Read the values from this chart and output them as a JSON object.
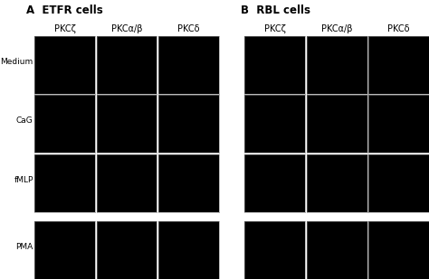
{
  "title_A": "A  ETFR cells",
  "title_B": "B  RBL cells",
  "col_labels": [
    "PKCζ",
    "PKCα/β",
    "PKCδ"
  ],
  "row_labels": [
    "Medium",
    "CaG",
    "fMLP",
    "PMA"
  ],
  "bg_color": "#ffffff",
  "panel_bg": "#000000",
  "title_fontsize": 8.5,
  "label_fontsize": 7,
  "row_label_fontsize": 6.5,
  "fig_width": 4.74,
  "fig_height": 3.09
}
